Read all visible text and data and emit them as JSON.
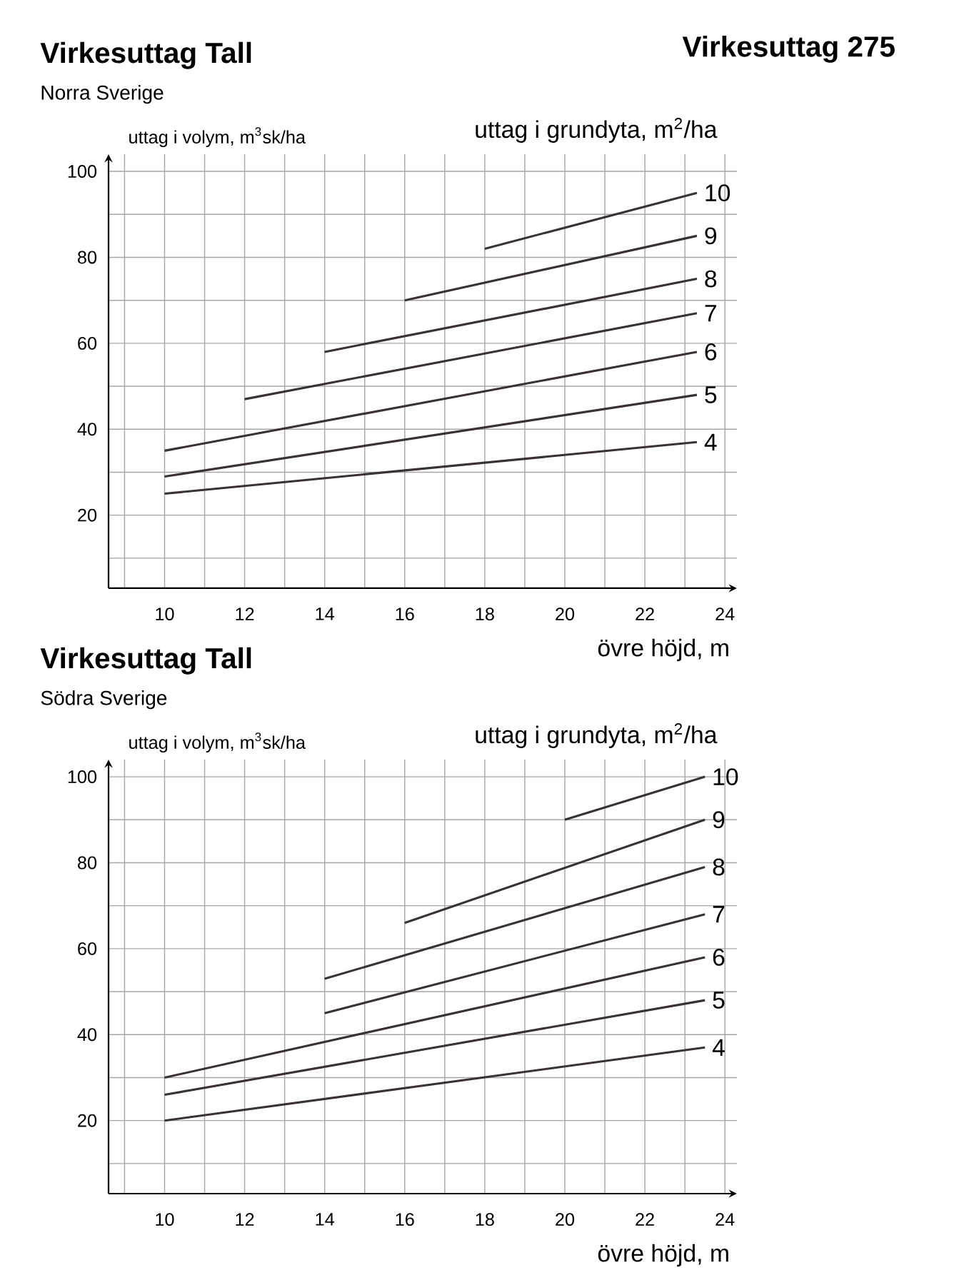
{
  "chart_data": [
    {
      "type": "line",
      "title": "Virkesuttag Tall",
      "subtitle": "Norra Sverige",
      "ylabel": "uttag i volym, m$^{3}$sk/ha",
      "xlabel": "övre höjd, m",
      "legend_title": "uttag i grundyta, m$^{2}$/ha",
      "annotations": [
        "Virkesuttag 275"
      ],
      "grid": true,
      "legend": false,
      "marker": "none",
      "line_style": "solid",
      "xlim": [
        8.6,
        24.3
      ],
      "ylim": [
        3,
        104
      ],
      "xticks": [
        {
          "value": 9,
          "label": null
        },
        10,
        {
          "value": 11,
          "label": null
        },
        12,
        {
          "value": 13,
          "label": null
        },
        14,
        {
          "value": 15,
          "label": null
        },
        16,
        {
          "value": 17,
          "label": null
        },
        18,
        {
          "value": 19,
          "label": null
        },
        20,
        {
          "value": 21,
          "label": null
        },
        22,
        {
          "value": 23,
          "label": null
        },
        24
      ],
      "yticks": [
        {
          "value": 10,
          "label": null
        },
        20,
        {
          "value": 30,
          "label": null
        },
        40,
        {
          "value": 50,
          "label": null
        },
        60,
        {
          "value": 70,
          "label": null
        },
        80,
        {
          "value": 90,
          "label": null
        },
        100
      ],
      "series": [
        {
          "name": "4",
          "color": "#3a3232",
          "x": [
            10,
            23.3
          ],
          "values": [
            25,
            37
          ]
        },
        {
          "name": "5",
          "color": "#3a3232",
          "x": [
            10,
            23.3
          ],
          "values": [
            29,
            48
          ]
        },
        {
          "name": "6",
          "color": "#3a3232",
          "x": [
            10,
            23.3
          ],
          "values": [
            35,
            58
          ]
        },
        {
          "name": "7",
          "color": "#3a3232",
          "x": [
            12,
            23.3
          ],
          "values": [
            47,
            67
          ]
        },
        {
          "name": "8",
          "color": "#3a3232",
          "x": [
            14,
            23.3
          ],
          "values": [
            58,
            75
          ]
        },
        {
          "name": "9",
          "color": "#3a3232",
          "x": [
            16,
            23.3
          ],
          "values": [
            70,
            85
          ]
        },
        {
          "name": "10",
          "color": "#3a3232",
          "x": [
            18,
            23.3
          ],
          "values": [
            82,
            95
          ]
        }
      ]
    },
    {
      "type": "line",
      "title": "Virkesuttag Tall",
      "subtitle": "Södra Sverige",
      "ylabel": "uttag i volym, m$^{3}$sk/ha",
      "xlabel": "övre höjd, m",
      "legend_title": "uttag i grundyta, m$^{2}$/ha",
      "grid": true,
      "legend": false,
      "marker": "none",
      "line_style": "solid",
      "xlim": [
        8.6,
        24.3
      ],
      "ylim": [
        3,
        104
      ],
      "xticks": [
        {
          "value": 9,
          "label": null
        },
        10,
        {
          "value": 11,
          "label": null
        },
        12,
        {
          "value": 13,
          "label": null
        },
        14,
        {
          "value": 15,
          "label": null
        },
        16,
        {
          "value": 17,
          "label": null
        },
        18,
        {
          "value": 19,
          "label": null
        },
        20,
        {
          "value": 21,
          "label": null
        },
        22,
        {
          "value": 23,
          "label": null
        },
        24
      ],
      "yticks": [
        {
          "value": 10,
          "label": null
        },
        20,
        {
          "value": 30,
          "label": null
        },
        40,
        {
          "value": 50,
          "label": null
        },
        60,
        {
          "value": 70,
          "label": null
        },
        80,
        {
          "value": 90,
          "label": null
        },
        100
      ],
      "series": [
        {
          "name": "4",
          "color": "#3a3232",
          "x": [
            10,
            23.5
          ],
          "values": [
            20,
            37
          ]
        },
        {
          "name": "5",
          "color": "#3a3232",
          "x": [
            10,
            23.5
          ],
          "values": [
            26,
            48
          ]
        },
        {
          "name": "6",
          "color": "#3a3232",
          "x": [
            10,
            23.5
          ],
          "values": [
            30,
            58
          ]
        },
        {
          "name": "7",
          "color": "#3a3232",
          "x": [
            14,
            23.5
          ],
          "values": [
            45,
            68
          ]
        },
        {
          "name": "8",
          "color": "#3a3232",
          "x": [
            14,
            23.5
          ],
          "values": [
            53,
            79
          ]
        },
        {
          "name": "9",
          "color": "#3a3232",
          "x": [
            16,
            23.5
          ],
          "values": [
            66,
            90
          ]
        },
        {
          "name": "10",
          "color": "#3a3232",
          "x": [
            20,
            23.5
          ],
          "values": [
            90,
            100
          ]
        }
      ]
    }
  ]
}
